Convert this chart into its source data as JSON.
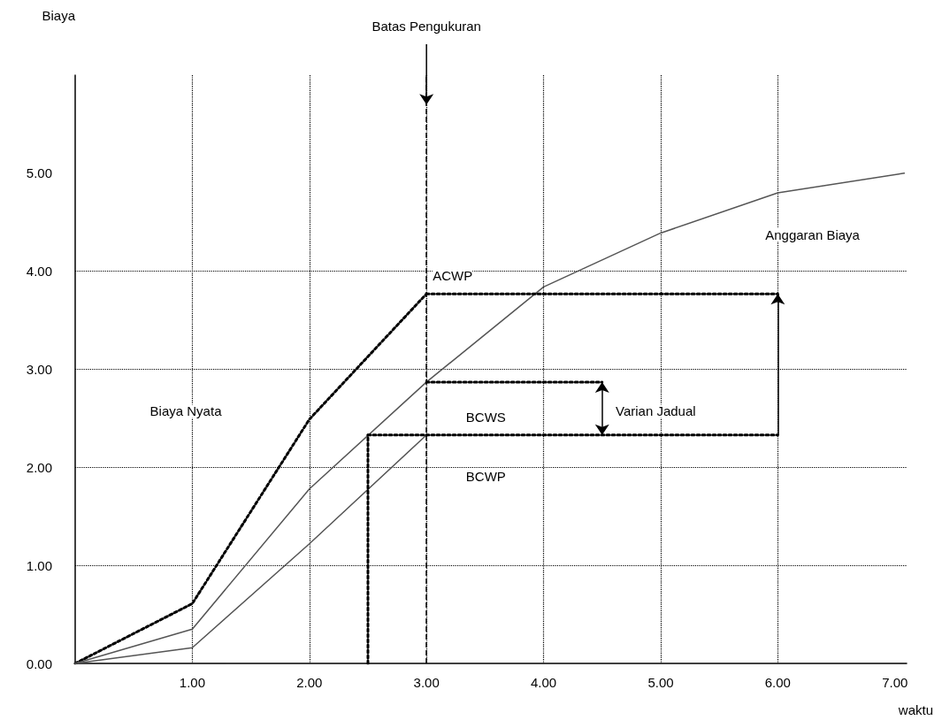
{
  "chart_data": {
    "type": "line",
    "xlabel": "waktu",
    "ylabel": "Biaya",
    "xlim": [
      0,
      7.1
    ],
    "ylim": [
      0,
      6
    ],
    "xticks": [
      {
        "value": 0,
        "label": null
      },
      {
        "value": 1,
        "label": "1.00"
      },
      {
        "value": 2,
        "label": "2.00"
      },
      {
        "value": 3,
        "label": "3.00"
      },
      {
        "value": 4,
        "label": "4.00"
      },
      {
        "value": 5,
        "label": "5.00"
      },
      {
        "value": 6,
        "label": "6.00"
      },
      {
        "value": 7,
        "label": "7.00"
      }
    ],
    "yticks": [
      {
        "value": 0,
        "label": "0.00"
      },
      {
        "value": 1,
        "label": "1.00"
      },
      {
        "value": 2,
        "label": "2.00"
      },
      {
        "value": 3,
        "label": "3.00"
      },
      {
        "value": 4,
        "label": "4.00"
      },
      {
        "value": 5,
        "label": "5.00"
      }
    ],
    "grid": true,
    "marker": "none",
    "series": [
      {
        "color": "#000000",
        "line_style": "dotted",
        "x": [
          0,
          1,
          2,
          3
        ],
        "values": [
          0,
          0.61,
          2.49,
          3.77
        ]
      },
      {
        "color": "#555555",
        "line_style": "solid",
        "x": [
          0,
          1,
          2,
          3,
          4,
          5,
          6,
          7.08
        ],
        "values": [
          0,
          0.35,
          1.78,
          2.87,
          3.84,
          4.39,
          4.8,
          5.0
        ]
      },
      {
        "color": "#555555",
        "line_style": "solid",
        "x": [
          0,
          1,
          2,
          3
        ],
        "values": [
          0,
          0.16,
          1.22,
          2.33
        ]
      },
      {
        "color": "#000000",
        "line_style": "dotted",
        "x": [
          3,
          6
        ],
        "values": [
          3.77,
          3.77
        ]
      },
      {
        "color": "#000000",
        "line_style": "dotted",
        "x": [
          3,
          4.5
        ],
        "values": [
          2.87,
          2.87
        ]
      },
      {
        "color": "#000000",
        "line_style": "dotted",
        "x": [
          2.5,
          6
        ],
        "values": [
          2.33,
          2.33
        ]
      },
      {
        "color": "#000000",
        "line_style": "dotted",
        "x": [
          2.5,
          2.5
        ],
        "values": [
          0,
          2.33
        ]
      }
    ],
    "ref_lines": [
      {
        "axis": "x",
        "value": 3,
        "label": "Batas Pengukuran",
        "line_style": "dashed",
        "color": "#000000"
      }
    ],
    "annotations": [
      "ACWP",
      "BCWS",
      "BCWP",
      "Biaya Nyata",
      "Varian Jadual",
      "Anggaran Biaya"
    ]
  }
}
